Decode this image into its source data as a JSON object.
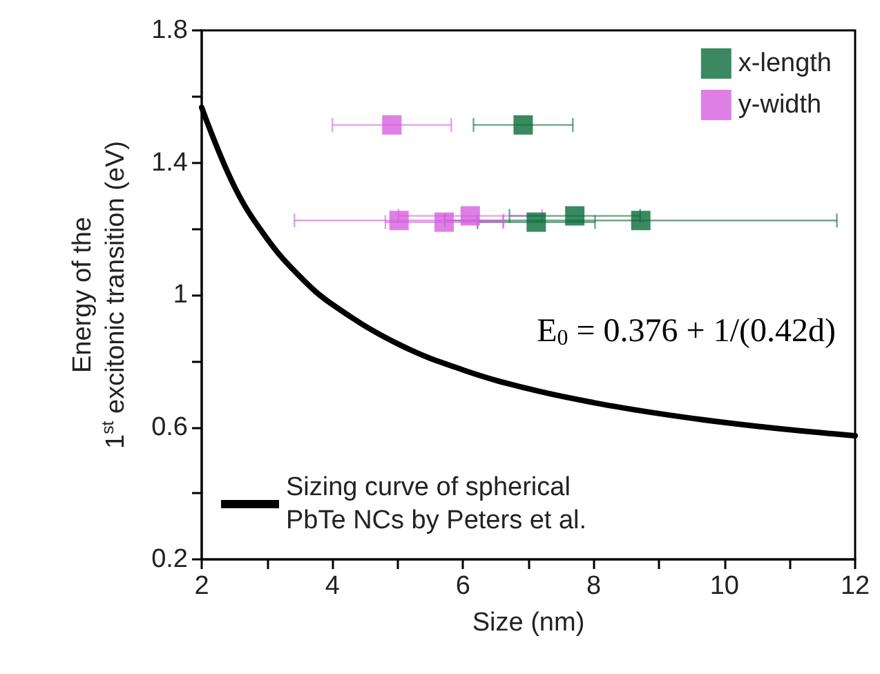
{
  "chart_data": {
    "type": "scatter",
    "xlabel": "Size (nm)",
    "ylabel": "Energy of the\n1$^{st}$ excitonic transition (eV)",
    "xlim": [
      2,
      12
    ],
    "xticks": [
      2,
      4,
      6,
      8,
      10,
      12
    ],
    "ylim": [
      0.2,
      1.8
    ],
    "yticks": [
      0.2,
      0.6,
      1,
      1.4,
      1.8
    ],
    "marker": "square",
    "legend": "top right",
    "grid": false,
    "annotations": [
      "E$_{0}$ = 0.376 + 1/(0.42d)"
    ],
    "series": [
      {
        "name": "x-length",
        "color": "#0a6b3a",
        "x": [
          6.92,
          7.12,
          7.71,
          8.72
        ],
        "values": [
          1.514,
          1.22,
          1.239,
          1.225
        ],
        "xerrors": [
          0.76,
          0.9,
          1.0,
          3.0
        ]
      },
      {
        "name": "y-width",
        "color": "#d65fe0",
        "x": [
          4.91,
          5.02,
          5.71,
          6.11
        ],
        "values": [
          1.514,
          1.225,
          1.22,
          1.239
        ],
        "xerrors": [
          0.91,
          1.6,
          0.9,
          1.1
        ]
      },
      {
        "name": "Sizing curve of spherical\nPbTe NCs by Peters et al.",
        "type": "line",
        "color": "#000000",
        "marker": "none",
        "line_style": "solid",
        "x": [
          2,
          2.5,
          3,
          3.5,
          4,
          5,
          6,
          7,
          8,
          9,
          10,
          11,
          12
        ],
        "values": [
          1.567,
          1.328,
          1.17,
          1.056,
          0.971,
          0.852,
          0.773,
          0.716,
          0.674,
          0.641,
          0.614,
          0.592,
          0.574
        ]
      }
    ]
  }
}
